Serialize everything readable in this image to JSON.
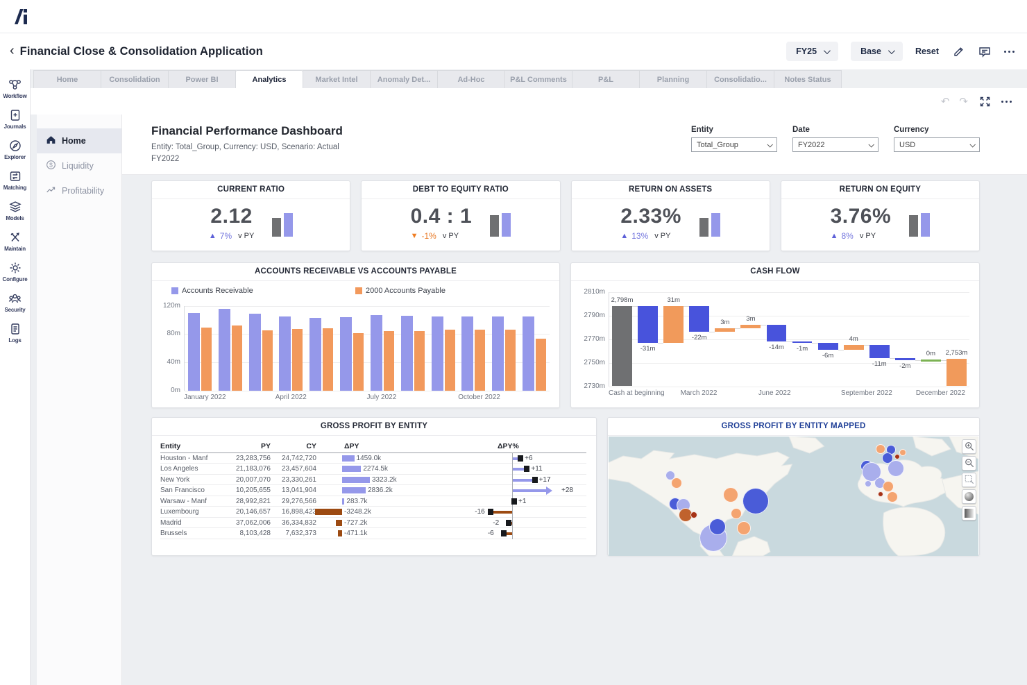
{
  "app": {
    "title": "Financial Close & Consolidation Application",
    "period_selector": "FY25",
    "version_selector": "Base",
    "reset_label": "Reset",
    "tabs": [
      {
        "label": "Home",
        "active": false
      },
      {
        "label": "Consolidation",
        "active": false
      },
      {
        "label": "Power BI",
        "active": false
      },
      {
        "label": "Analytics",
        "active": true
      },
      {
        "label": "Market Intel",
        "active": false
      },
      {
        "label": "Anomaly Det...",
        "active": false
      },
      {
        "label": "Ad-Hoc",
        "active": false
      },
      {
        "label": "P&L Comments",
        "active": false
      },
      {
        "label": "P&L",
        "active": false
      },
      {
        "label": "Planning",
        "active": false
      },
      {
        "label": "Consolidatio...",
        "active": false
      },
      {
        "label": "Notes Status",
        "active": false
      }
    ],
    "sidebar": [
      {
        "icon": "workflow-icon",
        "label": "Workflow"
      },
      {
        "icon": "journals-icon",
        "label": "Journals"
      },
      {
        "icon": "explorer-icon",
        "label": "Explorer"
      },
      {
        "icon": "matching-icon",
        "label": "Matching"
      },
      {
        "icon": "models-icon",
        "label": "Models"
      },
      {
        "icon": "maintain-icon",
        "label": "Maintain"
      },
      {
        "icon": "configure-icon",
        "label": "Configure"
      },
      {
        "icon": "security-icon",
        "label": "Security"
      },
      {
        "icon": "logs-icon",
        "label": "Logs"
      }
    ],
    "pages": [
      {
        "icon": "home-icon",
        "label": "Home",
        "active": true
      },
      {
        "icon": "liquidity-icon",
        "label": "Liquidity",
        "active": false
      },
      {
        "icon": "profitability-icon",
        "label": "Profitability",
        "active": false
      }
    ]
  },
  "dashboard": {
    "title": "Financial Performance Dashboard",
    "subtitle_line1": "Entity: Total_Group, Currency: USD, Scenario: Actual",
    "subtitle_line2": "FY2022",
    "filters": [
      {
        "label": "Entity",
        "value": "Total_Group"
      },
      {
        "label": "Date",
        "value": "FY2022"
      },
      {
        "label": "Currency",
        "value": "USD"
      }
    ],
    "kpis": [
      {
        "title": "CURRENT RATIO",
        "value": "2.12",
        "delta": "7%",
        "direction": "up",
        "compare": "v PY",
        "spark": [
          0.78,
          1
        ]
      },
      {
        "title": "DEBT TO EQUITY RATIO",
        "value": "0.4 : 1",
        "delta": "-1%",
        "direction": "down",
        "compare": "v PY",
        "spark": [
          0.92,
          1
        ]
      },
      {
        "title": "RETURN ON ASSETS",
        "value": "2.33%",
        "delta": "13%",
        "direction": "up",
        "compare": "v PY",
        "spark": [
          0.8,
          1
        ]
      },
      {
        "title": "RETURN ON EQUITY",
        "value": "3.76%",
        "delta": "8%",
        "direction": "up",
        "compare": "v PY",
        "spark": [
          0.9,
          1
        ]
      }
    ]
  },
  "chart_data": [
    {
      "id": "ar_vs_ap",
      "type": "bar",
      "title": "ACCOUNTS RECEIVABLE VS ACCOUNTS PAYABLE",
      "categories": [
        "January 2022",
        "February 2022",
        "March 2022",
        "April 2022",
        "May 2022",
        "June 2022",
        "July 2022",
        "August 2022",
        "September 2022",
        "October 2022",
        "November 2022",
        "December 2022"
      ],
      "x_tick_labels": [
        {
          "label": "January 2022",
          "index": 0
        },
        {
          "label": "April 2022",
          "index": 3
        },
        {
          "label": "July 2022",
          "index": 6
        },
        {
          "label": "October 2022",
          "index": 9
        }
      ],
      "series": [
        {
          "name": "Accounts Receivable",
          "color": "#9598ea",
          "values": [
            110,
            116,
            109,
            105,
            103,
            104,
            107,
            106,
            105,
            105,
            105,
            105
          ]
        },
        {
          "name": "2000 Accounts Payable",
          "color": "#f2995c",
          "values": [
            89,
            92,
            85,
            87,
            88,
            81,
            84,
            84,
            86,
            86,
            86,
            73
          ]
        }
      ],
      "unit": "m",
      "ylim": [
        0,
        120
      ],
      "y_ticks": [
        {
          "label": "0m",
          "v": 0
        },
        {
          "label": "40m",
          "v": 40
        },
        {
          "label": "80m",
          "v": 80
        },
        {
          "label": "120m",
          "v": 120
        }
      ],
      "legend_position": "top"
    },
    {
      "id": "cash_flow",
      "type": "waterfall",
      "title": "CASH FLOW",
      "ylim": [
        2730,
        2810
      ],
      "y_ticks": [
        {
          "label": "2810m",
          "v": 2810
        },
        {
          "label": "2790m",
          "v": 2790
        },
        {
          "label": "2770m",
          "v": 2770
        },
        {
          "label": "2750m",
          "v": 2750
        },
        {
          "label": "2730m",
          "v": 2730
        }
      ],
      "bars": [
        {
          "label": "2,798m",
          "value": 2798,
          "type": "total"
        },
        {
          "label": "-31m",
          "delta": -31,
          "type": "down"
        },
        {
          "label": "31m",
          "delta": 31,
          "type": "up"
        },
        {
          "label": "-22m",
          "delta": -22,
          "type": "down"
        },
        {
          "label": "3m",
          "delta": 3,
          "type": "up"
        },
        {
          "label": "3m",
          "delta": 3,
          "type": "up"
        },
        {
          "label": "-14m",
          "delta": -14,
          "type": "down"
        },
        {
          "label": "-1m",
          "delta": -1,
          "type": "down"
        },
        {
          "label": "-6m",
          "delta": -6,
          "type": "down"
        },
        {
          "label": "4m",
          "delta": 4,
          "type": "up"
        },
        {
          "label": "-11m",
          "delta": -11,
          "type": "down"
        },
        {
          "label": "-2m",
          "delta": -2,
          "type": "down"
        },
        {
          "label": "0m",
          "delta": 0,
          "type": "zero"
        },
        {
          "label": "2,753m",
          "value": 2753,
          "type": "end"
        }
      ],
      "colors": {
        "total": "#6f7072",
        "down": "#4853dc",
        "up": "#f19a5b",
        "end": "#f19a5b",
        "zero": "#7cb253"
      },
      "x_labels": [
        {
          "label": "Cash at beginning",
          "pos": 0
        },
        {
          "label": "March 2022",
          "pos": 25
        },
        {
          "label": "June 2022",
          "pos": 46
        },
        {
          "label": "September 2022",
          "pos": 71.5
        },
        {
          "label": "December 2022",
          "pos": 92
        }
      ]
    },
    {
      "id": "gross_profit_by_entity",
      "type": "table",
      "title": "GROSS PROFIT BY ENTITY",
      "columns": [
        "Entity",
        "PY",
        "CY",
        "ΔPY",
        "ΔPY%"
      ],
      "bar_colors": {
        "positive": "#9598ea",
        "negative": "#9c4a12"
      },
      "rows": [
        {
          "entity": "Houston - Manf",
          "py": "23,283,756",
          "cy": "24,742,720",
          "dpy": 1459.0,
          "dpy_label": "1459.0k",
          "pct": 6,
          "pct_label": "+6"
        },
        {
          "entity": "Los Angeles",
          "py": "21,183,076",
          "cy": "23,457,604",
          "dpy": 2274.5,
          "dpy_label": "2274.5k",
          "pct": 11,
          "pct_label": "+11"
        },
        {
          "entity": "New York",
          "py": "20,007,070",
          "cy": "23,330,261",
          "dpy": 3323.2,
          "dpy_label": "3323.2k",
          "pct": 17,
          "pct_label": "+17"
        },
        {
          "entity": "San Francisco",
          "py": "10,205,655",
          "cy": "13,041,904",
          "dpy": 2836.2,
          "dpy_label": "2836.2k",
          "pct": 28,
          "pct_label": "+28",
          "arrow": true
        },
        {
          "entity": "Warsaw - Manf",
          "py": "28,992,821",
          "cy": "29,276,566",
          "dpy": 283.7,
          "dpy_label": "283.7k",
          "pct": 1,
          "pct_label": "+1"
        },
        {
          "entity": "Luxembourg",
          "py": "20,146,657",
          "cy": "16,898,423",
          "dpy": -3248.2,
          "dpy_label": "-3248.2k",
          "pct": -16,
          "pct_label": "-16"
        },
        {
          "entity": "Madrid",
          "py": "37,062,006",
          "cy": "36,334,832",
          "dpy": -727.2,
          "dpy_label": "-727.2k",
          "pct": -2,
          "pct_label": "-2"
        },
        {
          "entity": "Brussels",
          "py": "8,103,428",
          "cy": "7,632,373",
          "dpy": -471.1,
          "dpy_label": "-471.1k",
          "pct": -6,
          "pct_label": "-6"
        }
      ]
    },
    {
      "id": "gross_profit_mapped",
      "type": "map",
      "title": "GROSS PROFIT BY ENTITY MAPPED",
      "palette": {
        "b": "#4a5cd8",
        "lp": "#a9aeec",
        "o": "#f4a470",
        "dr": "#a63215",
        "do": "#c0622d"
      },
      "bubbles": [
        {
          "x": 16.7,
          "y": 32.6,
          "r": 7,
          "c": "lp"
        },
        {
          "x": 18.3,
          "y": 39.5,
          "r": 8,
          "c": "o"
        },
        {
          "x": 18.1,
          "y": 56.4,
          "r": 9,
          "c": "b"
        },
        {
          "x": 20.3,
          "y": 58.1,
          "r": 10,
          "c": "lp"
        },
        {
          "x": 20.9,
          "y": 65.7,
          "r": 10,
          "c": "do"
        },
        {
          "x": 23.0,
          "y": 65.7,
          "r": 5,
          "c": "dr"
        },
        {
          "x": 28.3,
          "y": 84.9,
          "r": 20,
          "c": "lp"
        },
        {
          "x": 29.5,
          "y": 75.6,
          "r": 12,
          "c": "b"
        },
        {
          "x": 33.1,
          "y": 49.4,
          "r": 11,
          "c": "o"
        },
        {
          "x": 34.6,
          "y": 65.1,
          "r": 8,
          "c": "o"
        },
        {
          "x": 39.8,
          "y": 54.1,
          "r": 19,
          "c": "b"
        },
        {
          "x": 36.6,
          "y": 77.3,
          "r": 10,
          "c": "o"
        },
        {
          "x": 73.6,
          "y": 11.0,
          "r": 7,
          "c": "o"
        },
        {
          "x": 76.4,
          "y": 11.6,
          "r": 7,
          "c": "b"
        },
        {
          "x": 79.5,
          "y": 13.4,
          "r": 5,
          "c": "o"
        },
        {
          "x": 78.1,
          "y": 16.9,
          "r": 4,
          "c": "dr"
        },
        {
          "x": 75.4,
          "y": 18.6,
          "r": 8,
          "c": "b"
        },
        {
          "x": 69.7,
          "y": 25.0,
          "r": 9,
          "c": "b"
        },
        {
          "x": 71.1,
          "y": 30.2,
          "r": 14,
          "c": "lp"
        },
        {
          "x": 77.6,
          "y": 27.3,
          "r": 12,
          "c": "lp"
        },
        {
          "x": 70.1,
          "y": 40.1,
          "r": 5,
          "c": "lp"
        },
        {
          "x": 73.4,
          "y": 39.0,
          "r": 8,
          "c": "lp"
        },
        {
          "x": 75.6,
          "y": 42.4,
          "r": 8,
          "c": "o"
        },
        {
          "x": 73.6,
          "y": 48.3,
          "r": 4,
          "c": "dr"
        },
        {
          "x": 76.8,
          "y": 50.6,
          "r": 8,
          "c": "o"
        }
      ],
      "tools": [
        "zoom-in-icon",
        "zoom-out-icon",
        "zoom-box-icon",
        "globe-icon",
        "layers-icon"
      ]
    }
  ]
}
